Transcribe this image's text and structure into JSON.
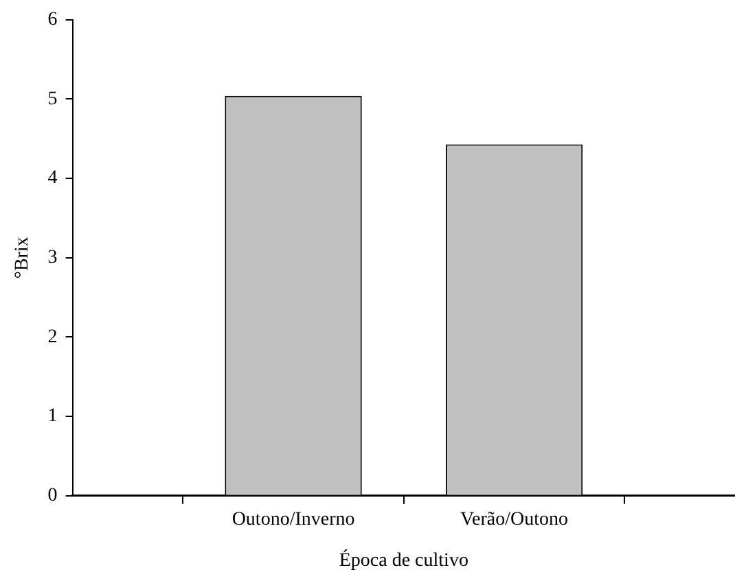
{
  "chart_data": {
    "type": "bar",
    "xlabel": "Época de cultivo",
    "ylabel": "°Brix",
    "categories": [
      "Outono/Inverno",
      "Verão/Outono"
    ],
    "values": [
      5.04,
      4.43
    ],
    "color": "#c0c0c0",
    "ylim": [
      0,
      6
    ],
    "yticks": [
      0,
      1,
      2,
      3,
      4,
      5,
      6
    ],
    "grid": false,
    "legend": false
  }
}
